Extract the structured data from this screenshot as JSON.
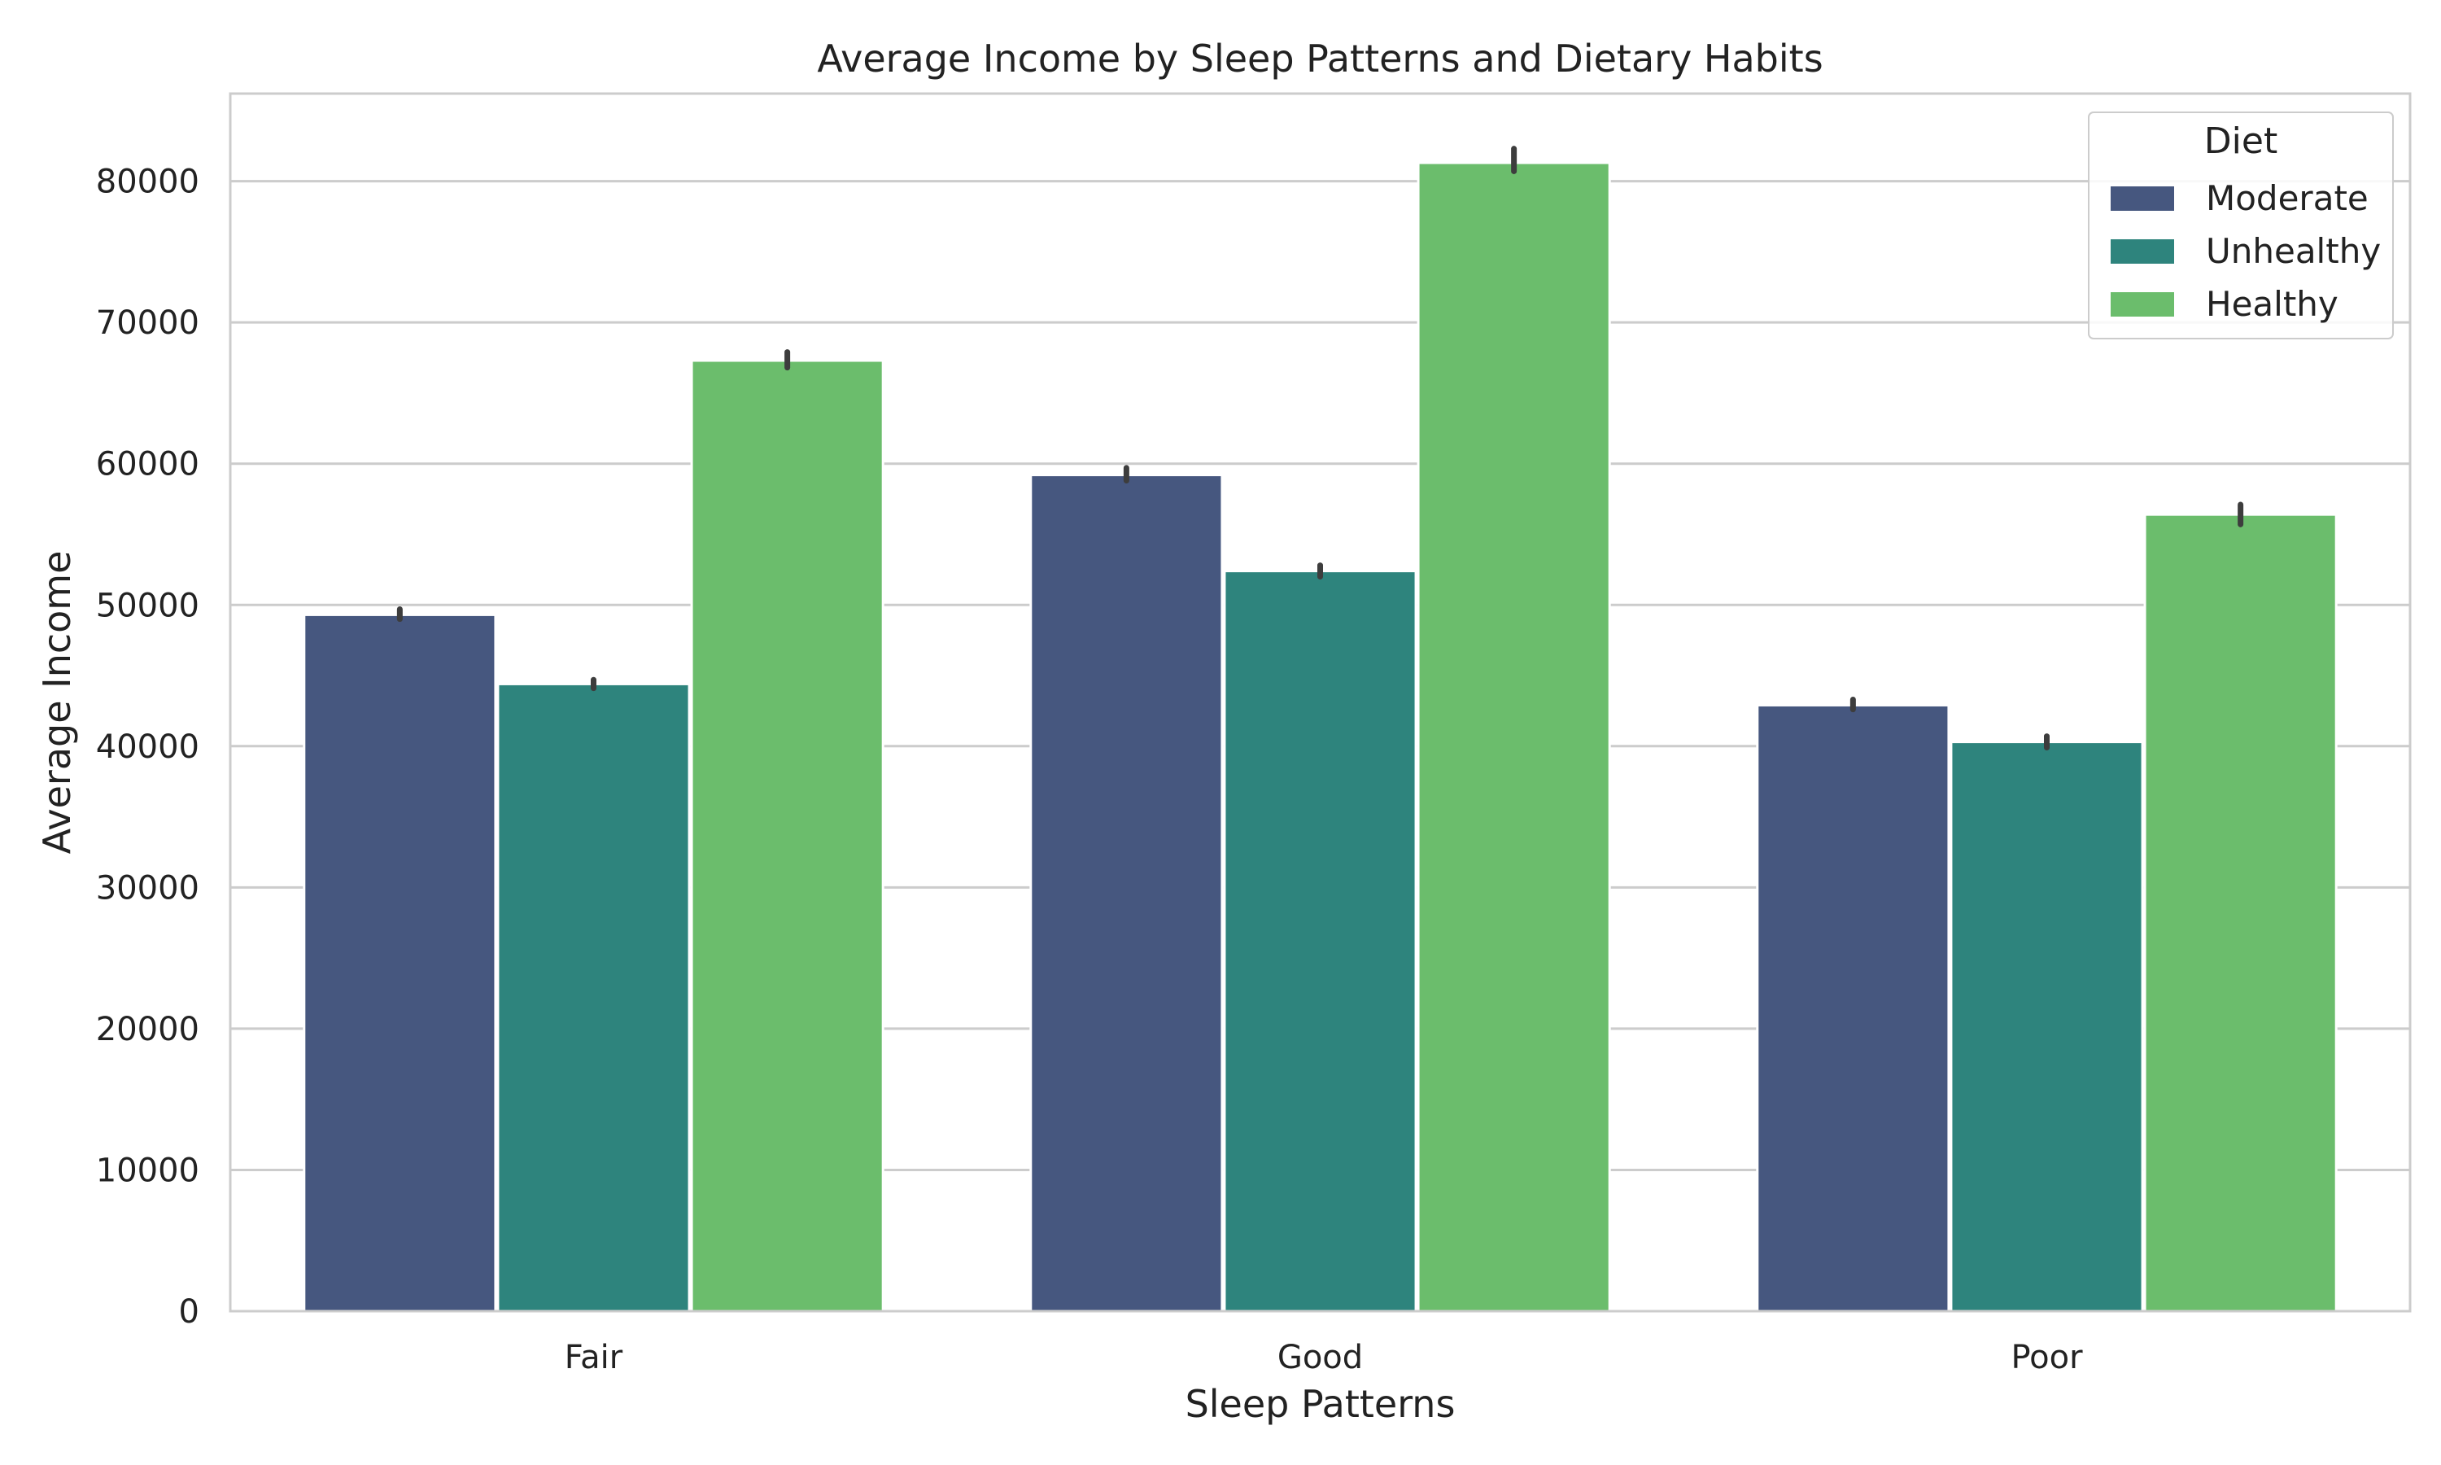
{
  "chart_data": {
    "type": "bar",
    "title": "Average Income by Sleep Patterns and Dietary Habits",
    "xlabel": "Sleep Patterns",
    "ylabel": "Average Income",
    "categories": [
      "Fair",
      "Good",
      "Poor"
    ],
    "ylim": [
      0,
      86200
    ],
    "yticks": [
      0,
      10000,
      20000,
      30000,
      40000,
      50000,
      60000,
      70000,
      80000
    ],
    "grid": "horizontal",
    "legend": {
      "title": "Diet",
      "placement": "top-right"
    },
    "series": [
      {
        "name": "Moderate",
        "color": "#46577f",
        "values": [
          49300,
          59200,
          42900
        ],
        "error": [
          [
            49000,
            49700
          ],
          [
            58800,
            59700
          ],
          [
            42600,
            43300
          ]
        ]
      },
      {
        "name": "Unhealthy",
        "color": "#2e847d",
        "values": [
          44400,
          52400,
          40300
        ],
        "error": [
          [
            44100,
            44700
          ],
          [
            52000,
            52800
          ],
          [
            39900,
            40700
          ]
        ]
      },
      {
        "name": "Healthy",
        "color": "#6bbd6c",
        "values": [
          67300,
          81300,
          56400
        ],
        "error": [
          [
            66800,
            67900
          ],
          [
            80700,
            82300
          ],
          [
            55700,
            57100
          ]
        ]
      }
    ]
  }
}
